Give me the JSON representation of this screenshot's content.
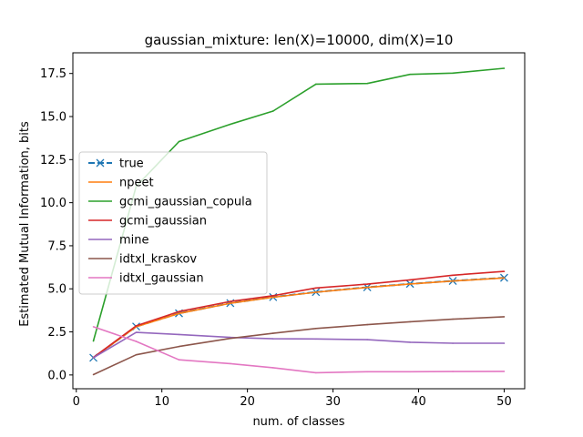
{
  "chart_data": {
    "type": "line",
    "title": "gaussian_mixture: len(X)=10000, dim(X)=10",
    "xlabel": "num. of classes",
    "ylabel": "Estimated Mutual Information, bits",
    "xlim": [
      -0.4,
      52.4
    ],
    "ylim": [
      -0.8,
      18.7
    ],
    "xticks": [
      0,
      10,
      20,
      30,
      40,
      50
    ],
    "yticks": [
      0.0,
      2.5,
      5.0,
      7.5,
      10.0,
      12.5,
      15.0,
      17.5
    ],
    "xtick_labels": [
      "0",
      "10",
      "20",
      "30",
      "40",
      "50"
    ],
    "ytick_labels": [
      "0.0",
      "2.5",
      "5.0",
      "7.5",
      "10.0",
      "12.5",
      "15.0",
      "17.5"
    ],
    "grid": false,
    "legend_position": "center-left",
    "x": [
      2,
      7,
      12,
      18,
      23,
      28,
      34,
      39,
      44,
      50
    ],
    "series": [
      {
        "name": "true",
        "color": "#1f77b4",
        "marker": "x",
        "dashed": true,
        "values": [
          1.0,
          2.81,
          3.58,
          4.17,
          4.52,
          4.81,
          5.09,
          5.29,
          5.46,
          5.64
        ]
      },
      {
        "name": "npeet",
        "color": "#ff7f0e",
        "marker": "none",
        "dashed": false,
        "values": [
          1.0,
          2.8,
          3.57,
          4.16,
          4.51,
          4.8,
          5.08,
          5.28,
          5.45,
          5.63
        ]
      },
      {
        "name": "gcmi_gaussian_copula",
        "color": "#2ca02c",
        "marker": "none",
        "dashed": false,
        "values": [
          1.97,
          10.95,
          13.55,
          14.55,
          15.32,
          16.88,
          16.92,
          17.45,
          17.52,
          17.8
        ]
      },
      {
        "name": "gcmi_gaussian",
        "color": "#d62728",
        "marker": "none",
        "dashed": false,
        "values": [
          1.02,
          2.85,
          3.68,
          4.27,
          4.6,
          5.05,
          5.27,
          5.52,
          5.79,
          6.01
        ]
      },
      {
        "name": "mine",
        "color": "#9467bd",
        "marker": "none",
        "dashed": false,
        "values": [
          1.0,
          2.47,
          2.35,
          2.18,
          2.1,
          2.09,
          2.05,
          1.9,
          1.84,
          1.84
        ]
      },
      {
        "name": "idtxl_kraskov",
        "color": "#8c564b",
        "marker": "none",
        "dashed": false,
        "values": [
          0.02,
          1.17,
          1.65,
          2.12,
          2.42,
          2.7,
          2.92,
          3.09,
          3.24,
          3.38
        ]
      },
      {
        "name": "idtxl_gaussian",
        "color": "#e377c2",
        "marker": "none",
        "dashed": false,
        "values": [
          2.8,
          1.95,
          0.88,
          0.66,
          0.42,
          0.13,
          0.19,
          0.19,
          0.2,
          0.21
        ]
      }
    ]
  }
}
